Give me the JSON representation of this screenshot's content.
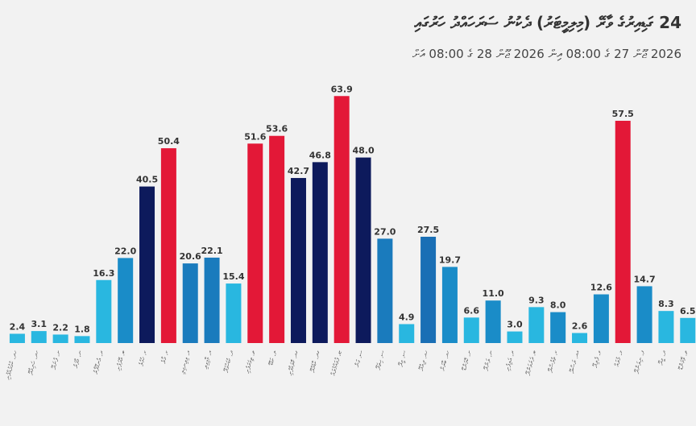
{
  "chart_data": {
    "type": "bar",
    "title": "24 ގަޑިއިރުގެ ވާރޭ (މިލިމީޓަރު) ދެކުނު ސަރަހައްދު ހަރުގައި",
    "subtitle": "2026 ޖޫން 27 ގެ 08:00 އިން 2026 ޖޫން 28 ގެ 08:00 އަށް",
    "categories": [
      "ހދ. ކުޅުދުއްފުށި",
      "ހދ. ހަނިމާދޫ",
      "ށ. ފުނަދޫ",
      "ނ. މާފަރު",
      "ރ. އުނގޫފާރު",
      "ބ. އޭދަފުށި",
      "ކ. ހުޅުލެ",
      "ކ. މާލެ",
      "އ. ވިލިނގިލި",
      "އ. މާމިގިލި",
      "ދ. ކުޑަހުވަދޫ",
      "ތ. ތިމަރަފުށި",
      "ލ. ކަޑްޑޫ",
      "ގއ. ކޮލަމާފުށި",
      "ގދ. ކާޑެއްދޫ",
      "ޏ. ފުވައްމުލައް",
      "ސ. ގަން",
      "ސ. ހިތަދޫ",
      "ސ. މީދޫ",
      "ހއ. ދިއްދޫ",
      "ހއ. ބާރަށް",
      "ށ. ކޮމަންޑޫ",
      "ނ. ލަންދޫ",
      "ރ. އަލިފުށި",
      "ބ. ދަރަވަންދޫ",
      "ކ. ތުލުސްދޫ",
      "އއ. ރަސްދޫ",
      "ވ. ފެލިދޫ",
      "މ. މުލައް",
      "ފ. ނިލަންދޫ",
      "ދ. މީދޫ",
      "ތ. ވޭމަންޑޫ"
    ],
    "values": [
      2.4,
      3.1,
      2.2,
      1.8,
      16.3,
      22.0,
      40.5,
      50.4,
      20.6,
      22.1,
      15.4,
      51.6,
      53.6,
      42.7,
      46.8,
      63.9,
      48.0,
      27.0,
      4.9,
      27.5,
      19.7,
      6.6,
      11.0,
      3.0,
      9.3,
      8.0,
      2.6,
      12.6,
      57.5,
      14.7,
      8.3,
      6.5
    ],
    "bar_colors": [
      "#29b7e0",
      "#29b7e0",
      "#29b7e0",
      "#29b7e0",
      "#29b7e0",
      "#1a8cc8",
      "#0d1a5c",
      "#e31837",
      "#1a7bbd",
      "#1a7bbd",
      "#29b7e0",
      "#e31837",
      "#e31837",
      "#0d1a5c",
      "#0d1a5c",
      "#e31837",
      "#0d1a5c",
      "#1a7bbd",
      "#29b7e0",
      "#1a6fb5",
      "#1a8cc8",
      "#29b7e0",
      "#1a8cc8",
      "#29b7e0",
      "#29b7e0",
      "#1a8cc8",
      "#29b7e0",
      "#1a8cc8",
      "#e31837",
      "#1a8cc8",
      "#29b7e0",
      "#29b7e0"
    ],
    "ylim": [
      0,
      70
    ],
    "grid": false,
    "xlabel": "",
    "ylabel": ""
  }
}
